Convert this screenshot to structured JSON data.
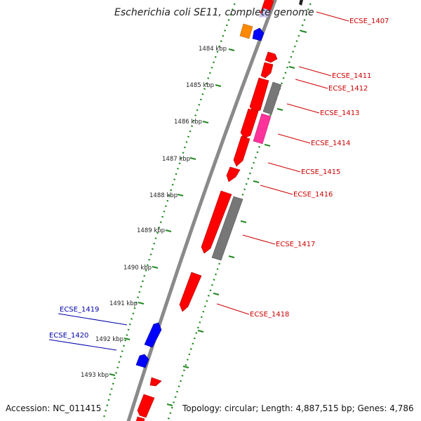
{
  "title": "Escherichia coli SE11, complete genome",
  "footer": {
    "accession": "Accession: NC_011415",
    "topology": "Topology: circular; Length: 4,887,515 bp; Genes: 4,786"
  },
  "colors": {
    "forward_gene": "#ff0000",
    "reverse_gene": "#0000ff",
    "grey_feature": "#777777",
    "pink_feature": "#ff3399",
    "orange_feature": "#ff8800",
    "lavender_feature": "#ccccff",
    "forward_label": "#cc0000",
    "reverse_label": "#0000aa",
    "backbone": "#8a8a8a",
    "tick_dots": "#228822"
  },
  "scale": {
    "unit": "kbp",
    "ticks": [
      "1484 kbp",
      "1485 kbp",
      "1486 kbp",
      "1487 kbp",
      "1488 kbp",
      "1489 kbp",
      "1490 kbp",
      "1491 kbp",
      "1492 kbp",
      "1493 kbp"
    ]
  },
  "gene_labels": [
    {
      "label": "ECSE_1407",
      "strand": "forward"
    },
    {
      "label": "ECSE_1411",
      "strand": "forward"
    },
    {
      "label": "ECSE_1412",
      "strand": "forward"
    },
    {
      "label": "ECSE_1413",
      "strand": "forward"
    },
    {
      "label": "ECSE_1414",
      "strand": "forward"
    },
    {
      "label": "ECSE_1415",
      "strand": "forward"
    },
    {
      "label": "ECSE_1416",
      "strand": "forward"
    },
    {
      "label": "ECSE_1417",
      "strand": "forward"
    },
    {
      "label": "ECSE_1418",
      "strand": "forward"
    },
    {
      "label": "ECSE_1419",
      "strand": "reverse"
    },
    {
      "label": "ECSE_1420",
      "strand": "reverse"
    }
  ]
}
